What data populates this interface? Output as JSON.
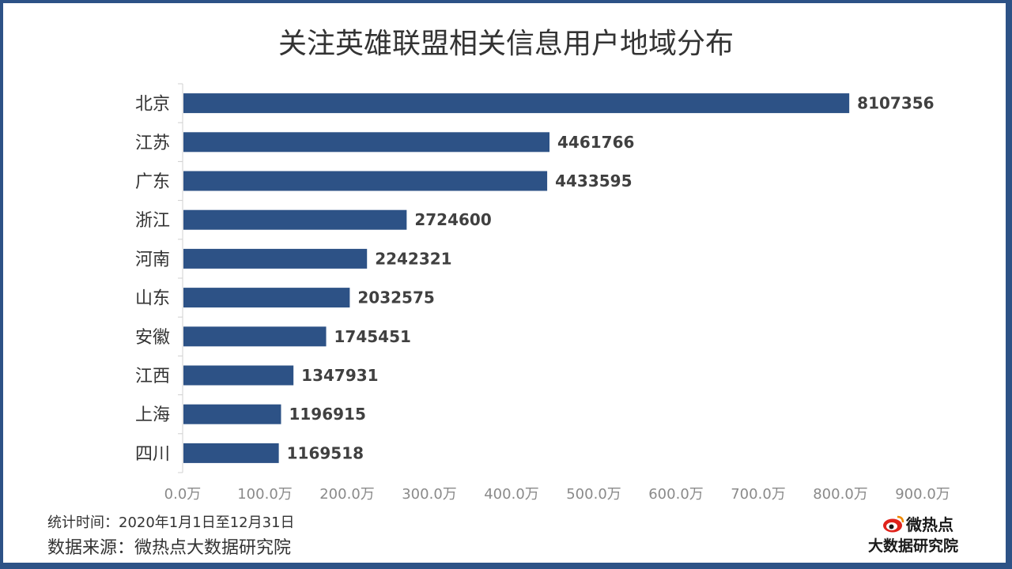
{
  "chart_data": {
    "type": "bar",
    "orientation": "horizontal",
    "title": "关注英雄联盟相关信息用户地域分布",
    "categories": [
      "北京",
      "江苏",
      "广东",
      "浙江",
      "河南",
      "山东",
      "安徽",
      "江西",
      "上海",
      "四川"
    ],
    "values": [
      8107356,
      4461766,
      4433595,
      2724600,
      2242321,
      2032575,
      1745451,
      1347931,
      1196915,
      1169518
    ],
    "value_labels": [
      "8107356",
      "4461766",
      "4433595",
      "2724600",
      "2242321",
      "2032575",
      "1745451",
      "1347931",
      "1196915",
      "1169518"
    ],
    "xlim": [
      0,
      9000000
    ],
    "x_ticks": [
      0,
      1000000,
      2000000,
      3000000,
      4000000,
      5000000,
      6000000,
      7000000,
      8000000,
      9000000
    ],
    "x_tick_labels": [
      "0.0万",
      "100.0万",
      "200.0万",
      "300.0万",
      "400.0万",
      "500.0万",
      "600.0万",
      "700.0万",
      "800.0万",
      "900.0万"
    ],
    "bar_color": "#2d5286",
    "grid": false,
    "legend": "none"
  },
  "footer": {
    "period": "统计时间：2020年1月1日至12月31日",
    "source": "数据来源：微热点大数据研究院"
  },
  "logo": {
    "name": "微热点",
    "subtitle": "大数据研究院",
    "icon": "weibo-eye-icon"
  },
  "colors": {
    "frame": "#2d5286",
    "accent": "#e0231b"
  }
}
